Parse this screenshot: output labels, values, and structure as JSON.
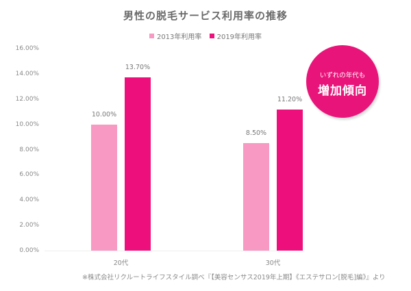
{
  "colors": {
    "series_2013": "#f799c2",
    "series_2019": "#ec0f7c",
    "badge": "#e9147a"
  },
  "chart_data": {
    "type": "bar",
    "title": "男性の脱毛サービス利用率の推移",
    "categories": [
      "20代",
      "30代"
    ],
    "series": [
      {
        "name": "2013年利用率",
        "values": [
          10.0,
          8.5
        ],
        "labels": [
          "10.00%",
          "8.50%"
        ]
      },
      {
        "name": "2019年利用率",
        "values": [
          13.7,
          11.2
        ],
        "labels": [
          "13.70%",
          "11.20%"
        ]
      }
    ],
    "xlabel": "",
    "ylabel": "",
    "ylim": [
      0,
      16
    ],
    "yticks": [
      "0.00%",
      "2.00%",
      "4.00%",
      "6.00%",
      "8.00%",
      "10.00%",
      "12.00%",
      "14.00%",
      "16.00%"
    ],
    "grid": false,
    "legend_position": "top",
    "annotation": {
      "line1": "いずれの年代も",
      "line2": "増加傾向"
    }
  },
  "footnote": "※株式会社リクルートライフスタイル調べ『【美容センサス2019年上期】《エステサロン[脱毛]編》』より"
}
